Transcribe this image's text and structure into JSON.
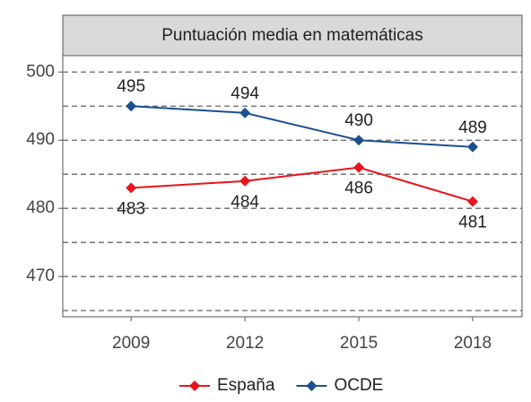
{
  "chart_data": {
    "type": "line",
    "title": "Puntuación media en matemáticas",
    "x": [
      2009,
      2012,
      2015,
      2018
    ],
    "series": [
      {
        "name": "España",
        "color": "#e8141c",
        "values": [
          483,
          484,
          486,
          481
        ],
        "label_position": "below"
      },
      {
        "name": "OCDE",
        "color": "#1b4f8e",
        "values": [
          495,
          494,
          490,
          489
        ],
        "label_position": "above"
      }
    ],
    "xlim": [
      2007.2,
      2019.3
    ],
    "xticks": [
      2009,
      2012,
      2015,
      2018
    ],
    "ylim": [
      464.1,
      502.4
    ],
    "yticks": [
      470,
      480,
      490,
      500
    ],
    "yminorticks": [
      465,
      475,
      485,
      495
    ],
    "grid": true,
    "legend": "bottom"
  }
}
